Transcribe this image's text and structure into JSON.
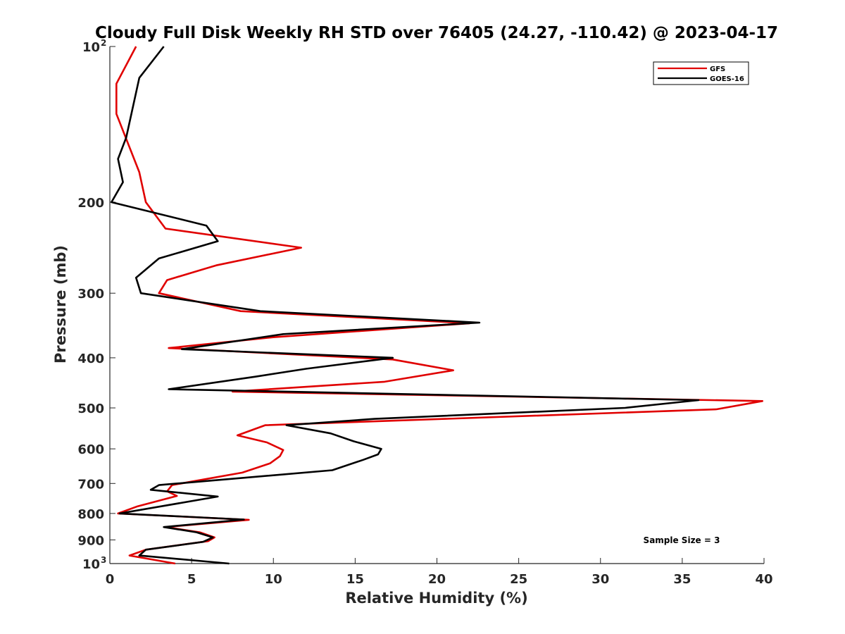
{
  "chart_data": {
    "type": "line",
    "title": "Cloudy Full Disk Weekly RH STD over 76405 (24.27, -110.42) @ 2023-04-17",
    "xlabel": "Relative Humidity (%)",
    "ylabel": "Pressure (mb)",
    "xlim": [
      0,
      40
    ],
    "ylim": [
      100,
      1000
    ],
    "y_scale": "log",
    "y_reversed": true,
    "grid": false,
    "legend_position": "top-right",
    "annotation": "Sample Size = 3",
    "x_ticks": [
      {
        "value": 0,
        "label": "0"
      },
      {
        "value": 5,
        "label": "5"
      },
      {
        "value": 10,
        "label": "10"
      },
      {
        "value": 15,
        "label": "15"
      },
      {
        "value": 20,
        "label": "20"
      },
      {
        "value": 25,
        "label": "25"
      },
      {
        "value": 30,
        "label": "30"
      },
      {
        "value": 35,
        "label": "35"
      },
      {
        "value": 40,
        "label": "40"
      }
    ],
    "y_ticks": [
      {
        "value": 100,
        "label": "10",
        "sup": "2"
      },
      {
        "value": 200,
        "label": "200"
      },
      {
        "value": 300,
        "label": "300"
      },
      {
        "value": 400,
        "label": "400"
      },
      {
        "value": 500,
        "label": "500"
      },
      {
        "value": 600,
        "label": "600"
      },
      {
        "value": 700,
        "label": "700"
      },
      {
        "value": 800,
        "label": "800"
      },
      {
        "value": 900,
        "label": "900"
      },
      {
        "value": 1000,
        "label": "10",
        "sup": "3"
      }
    ],
    "series": [
      {
        "name": "GFS",
        "color": "#e00000",
        "points": [
          [
            1.6,
            100
          ],
          [
            0.4,
            118
          ],
          [
            0.4,
            135
          ],
          [
            1.8,
            175
          ],
          [
            2.2,
            200
          ],
          [
            3.4,
            225
          ],
          [
            11.7,
            245
          ],
          [
            6.5,
            265
          ],
          [
            3.5,
            283
          ],
          [
            3.0,
            300
          ],
          [
            8.0,
            325
          ],
          [
            22.0,
            343
          ],
          [
            10.0,
            365
          ],
          [
            3.6,
            383
          ],
          [
            17.3,
            403
          ],
          [
            21.0,
            423
          ],
          [
            16.8,
            445
          ],
          [
            7.5,
            465
          ],
          [
            39.9,
            485
          ],
          [
            37.1,
            503
          ],
          [
            9.5,
            540
          ],
          [
            7.8,
            565
          ],
          [
            9.6,
            583
          ],
          [
            10.6,
            603
          ],
          [
            10.4,
            620
          ],
          [
            9.8,
            640
          ],
          [
            8.1,
            667
          ],
          [
            3.8,
            705
          ],
          [
            3.5,
            725
          ],
          [
            4.1,
            740
          ],
          [
            1.7,
            775
          ],
          [
            0.5,
            800
          ],
          [
            8.5,
            823
          ],
          [
            3.4,
            850
          ],
          [
            5.5,
            870
          ],
          [
            6.4,
            890
          ],
          [
            6.0,
            905
          ],
          [
            2.2,
            940
          ],
          [
            1.2,
            965
          ],
          [
            4.0,
            1000
          ]
        ]
      },
      {
        "name": "GOES-16",
        "color": "#000000",
        "points": [
          [
            3.3,
            100
          ],
          [
            1.8,
            115
          ],
          [
            1.0,
            150
          ],
          [
            0.5,
            165
          ],
          [
            0.8,
            183
          ],
          [
            0.1,
            200
          ],
          [
            5.9,
            222
          ],
          [
            6.6,
            238
          ],
          [
            3.0,
            257
          ],
          [
            1.6,
            280
          ],
          [
            1.9,
            300
          ],
          [
            9.2,
            325
          ],
          [
            22.6,
            342
          ],
          [
            10.6,
            360
          ],
          [
            4.4,
            385
          ],
          [
            17.3,
            400
          ],
          [
            12.0,
            420
          ],
          [
            8.9,
            435
          ],
          [
            3.6,
            460
          ],
          [
            36.0,
            483
          ],
          [
            31.5,
            500
          ],
          [
            16.2,
            525
          ],
          [
            10.8,
            540
          ],
          [
            13.5,
            560
          ],
          [
            14.9,
            580
          ],
          [
            16.6,
            600
          ],
          [
            16.4,
            615
          ],
          [
            15.5,
            630
          ],
          [
            13.6,
            660
          ],
          [
            3.0,
            705
          ],
          [
            2.5,
            720
          ],
          [
            6.6,
            742
          ],
          [
            0.6,
            800
          ],
          [
            8.2,
            822
          ],
          [
            3.3,
            850
          ],
          [
            5.3,
            870
          ],
          [
            6.3,
            890
          ],
          [
            5.7,
            908
          ],
          [
            2.2,
            940
          ],
          [
            1.8,
            965
          ],
          [
            7.3,
            1000
          ]
        ]
      }
    ]
  },
  "legend": {
    "items": [
      {
        "name": "GFS",
        "color": "#e00000"
      },
      {
        "name": "GOES-16",
        "color": "#000000"
      }
    ]
  }
}
